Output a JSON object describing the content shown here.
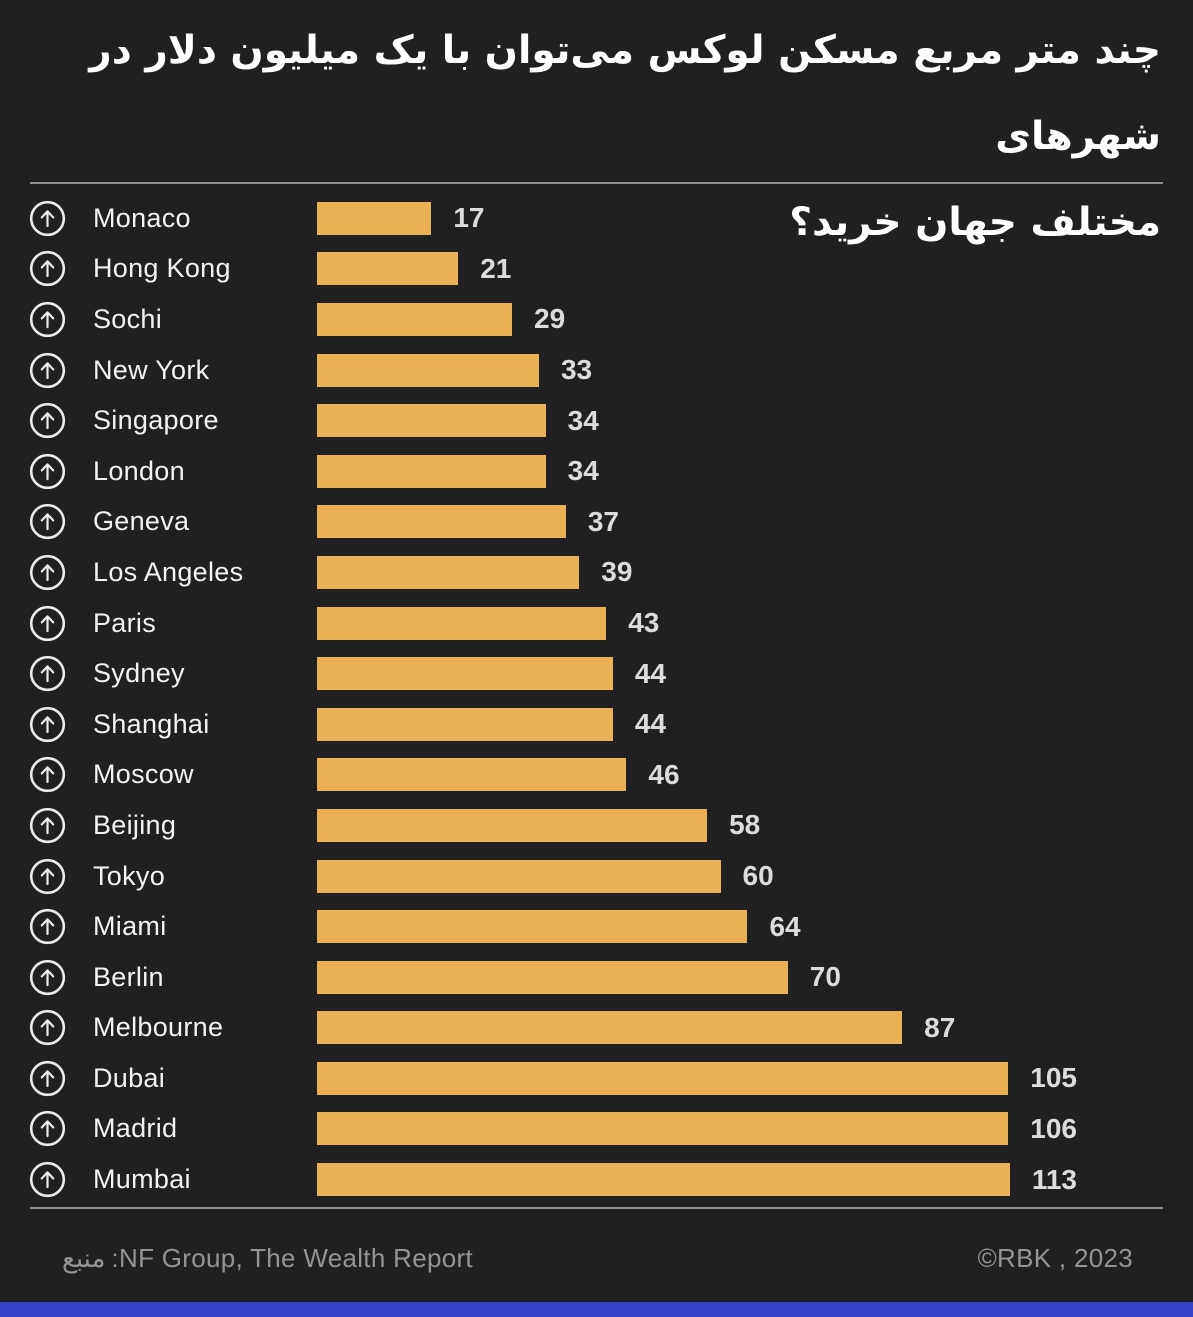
{
  "page": {
    "background_color": "#202023",
    "accent_bar_color": "#3544C9",
    "divider_color": "#8f8f8f"
  },
  "title": {
    "line1": "چند متر مربع مسکن لوکس می‌توان با یک میلیون دلار در شهرهای",
    "line2": "مختلف جهان خرید؟"
  },
  "chart_data": {
    "type": "bar",
    "orientation": "horizontal",
    "title": "چند متر مربع مسکن لوکس می‌توان با یک میلیون دلار در شهرهای مختلف جهان خرید؟",
    "categories": [
      "Monaco",
      "Hong Kong",
      "Sochi",
      "New York",
      "Singapore",
      "London",
      "Geneva",
      "Los Angeles",
      "Paris",
      "Sydney",
      "Shanghai",
      "Moscow",
      "Beijing",
      "Tokyo",
      "Miami",
      "Berlin",
      "Melbourne",
      "Dubai",
      "Madrid",
      "Mumbai"
    ],
    "values": [
      17,
      21,
      29,
      33,
      34,
      34,
      37,
      39,
      43,
      44,
      44,
      46,
      58,
      60,
      64,
      70,
      87,
      105,
      106,
      113
    ],
    "xlim": [
      0,
      113
    ],
    "bar_color": "#EAB254",
    "value_label_color": "#dcdcdc",
    "category_label_color": "#f3f3f3",
    "value_label_position": "right-of-bar",
    "row_icon": "arrow-up-circle",
    "grid": false,
    "legend": false
  },
  "footer": {
    "source_label_fa": "منبع",
    "source_text": ":NF Group, The Wealth Report",
    "copyright": "©RBK , 2023"
  }
}
